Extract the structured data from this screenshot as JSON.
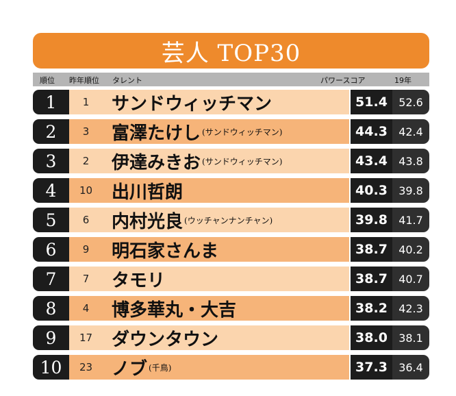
{
  "title": "芸人 TOP30",
  "headers": {
    "rank": "順位",
    "prev_rank": "昨年順位",
    "talent": "タレント",
    "score": "パワースコア",
    "prev_score": "19年"
  },
  "rows": [
    {
      "rank": "1",
      "prev_rank": "1",
      "name": "サンドウィッチマン",
      "unit": "",
      "score": "51.4",
      "prev_score": "52.6"
    },
    {
      "rank": "2",
      "prev_rank": "3",
      "name": "富澤たけし",
      "unit": "(サンドウィッチマン)",
      "score": "44.3",
      "prev_score": "42.4"
    },
    {
      "rank": "3",
      "prev_rank": "2",
      "name": "伊達みきお",
      "unit": "(サンドウィッチマン)",
      "score": "43.4",
      "prev_score": "43.8"
    },
    {
      "rank": "4",
      "prev_rank": "10",
      "name": "出川哲朗",
      "unit": "",
      "score": "40.3",
      "prev_score": "39.8"
    },
    {
      "rank": "5",
      "prev_rank": "6",
      "name": "内村光良",
      "unit": "(ウッチャンナンチャン)",
      "score": "39.8",
      "prev_score": "41.7"
    },
    {
      "rank": "6",
      "prev_rank": "9",
      "name": "明石家さんま",
      "unit": "",
      "score": "38.7",
      "prev_score": "40.2"
    },
    {
      "rank": "7",
      "prev_rank": "7",
      "name": "タモリ",
      "unit": "",
      "score": "38.7",
      "prev_score": "40.7"
    },
    {
      "rank": "8",
      "prev_rank": "4",
      "name": "博多華丸・大吉",
      "unit": "",
      "score": "38.2",
      "prev_score": "42.3"
    },
    {
      "rank": "9",
      "prev_rank": "17",
      "name": "ダウンタウン",
      "unit": "",
      "score": "38.0",
      "prev_score": "38.1"
    },
    {
      "rank": "10",
      "prev_rank": "23",
      "name": "ノブ",
      "unit": "(千鳥)",
      "score": "37.3",
      "prev_score": "36.4"
    }
  ]
}
